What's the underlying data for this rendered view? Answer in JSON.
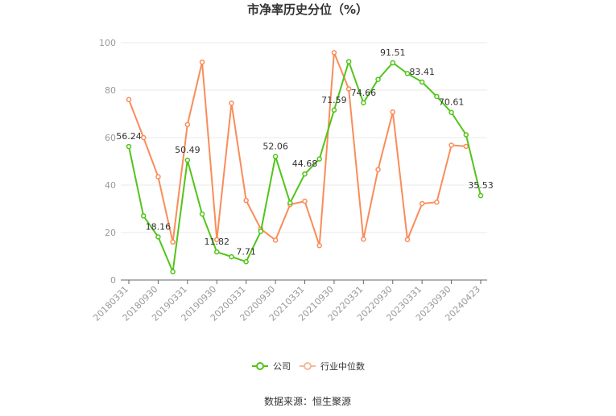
{
  "chart_data": {
    "type": "line",
    "title": "市净率历史分位（%）",
    "source": "数据来源：恒生聚源",
    "ylim": [
      0,
      100
    ],
    "yticks": [
      0,
      20,
      40,
      60,
      80,
      100
    ],
    "x_tick_labels": [
      "20180331",
      "20180930",
      "20190331",
      "20190930",
      "20200331",
      "20200930",
      "20210331",
      "20210930",
      "20220331",
      "20220930",
      "20230331",
      "20230930",
      "20240423"
    ],
    "legend_position": "bottom",
    "series": [
      {
        "name": "公司",
        "color": "#52c41a",
        "values": [
          56.24,
          27,
          18.16,
          3.5,
          50.49,
          27.8,
          11.82,
          9.8,
          7.71,
          20.5,
          52.06,
          32.5,
          44.68,
          51,
          71.59,
          92,
          74.66,
          84.5,
          91.51,
          87,
          83.41,
          77.3,
          70.61,
          61.2,
          35.53
        ],
        "labels": {
          "0": "56.24",
          "2": "18.16",
          "4": "50.49",
          "6": "11.82",
          "8": "7.71",
          "10": "52.06",
          "12": "44.68",
          "14": "71.59",
          "16": "74.66",
          "18": "91.51",
          "20": "83.41",
          "22": "70.61",
          "24": "35.53"
        }
      },
      {
        "name": "行业中位数",
        "color": "#fa8c5a",
        "values": [
          76,
          60,
          43.5,
          16,
          65.5,
          91.8,
          17,
          74.5,
          33.5,
          21.5,
          16.8,
          31.8,
          33.2,
          14.5,
          95.8,
          80.5,
          17.2,
          46.5,
          70.8,
          17,
          32.2,
          32.8,
          56.8,
          56.3,
          null
        ]
      }
    ]
  }
}
